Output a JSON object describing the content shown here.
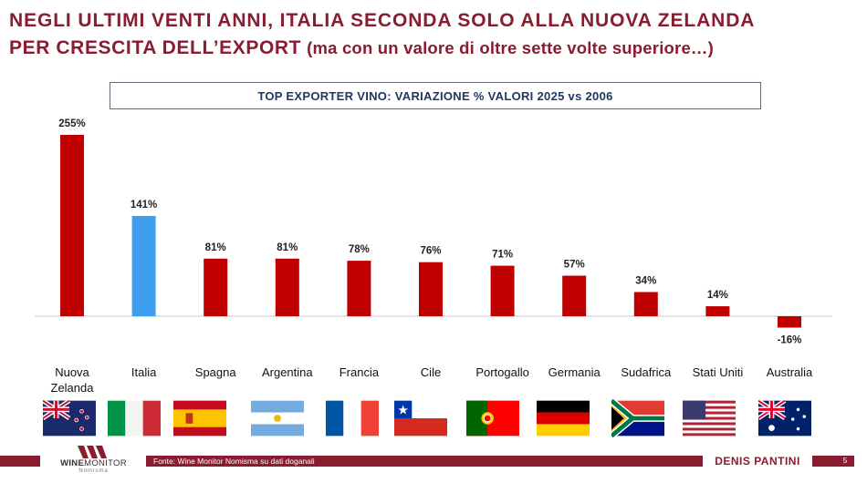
{
  "headline": {
    "line1": "NEGLI ULTIMI VENTI ANNI, ITALIA SECONDA SOLO ALLA NUOVA ZELANDA",
    "line2": "PER CRESCITA DELL’EXPORT",
    "line2_sub": "(ma con un valore di oltre sette volte superiore…)"
  },
  "chart_data": {
    "type": "bar",
    "title": "TOP EXPORTER VINO: VARIAZIONE % VALORI 2025 vs 2006",
    "categories": [
      "Nuova Zelanda",
      "Italia",
      "Spagna",
      "Argentina",
      "Francia",
      "Cile",
      "Portogallo",
      "Germania",
      "Sudafrica",
      "Stati Uniti",
      "Australia"
    ],
    "category_lines": [
      [
        "Nuova",
        "Zelanda"
      ],
      [
        "Italia"
      ],
      [
        "Spagna"
      ],
      [
        "Argentina"
      ],
      [
        "Francia"
      ],
      [
        "Cile"
      ],
      [
        "Portogallo"
      ],
      [
        "Germania"
      ],
      [
        "Sudafrica"
      ],
      [
        "Stati Uniti"
      ],
      [
        "Australia"
      ]
    ],
    "values": [
      255,
      141,
      81,
      81,
      78,
      76,
      71,
      57,
      34,
      14,
      -16
    ],
    "value_labels": [
      "255%",
      "141%",
      "81%",
      "81%",
      "78%",
      "76%",
      "71%",
      "57%",
      "34%",
      "14%",
      "-16%"
    ],
    "unit": "%",
    "ylim": [
      -16,
      255
    ],
    "grid": false,
    "legend": "none",
    "colors": {
      "default": "#c00000",
      "highlight": "#3d9ef0",
      "highlight_category": "Italia",
      "baseline": "#c8c8c8",
      "label": "#222222",
      "category_label": "#111111"
    }
  },
  "flags": [
    "new-zealand-flag-icon",
    "italy-flag-icon",
    "spain-flag-icon",
    "argentina-flag-icon",
    "france-flag-icon",
    "chile-flag-icon",
    "portugal-flag-icon",
    "germany-flag-icon",
    "south-africa-flag-icon",
    "united-states-flag-icon",
    "australia-flag-icon"
  ],
  "footer": {
    "logo_text_bold": "WINE",
    "logo_text_thin": "MONITOR",
    "logo_sub": "Nomisma",
    "source": "Fonte: Wine Monitor Nomisma su dati doganali",
    "author": "DENIS PANTINI",
    "page": "5"
  },
  "theme": {
    "brand": "#8a1c30",
    "title_box_text": "#1f3864"
  }
}
